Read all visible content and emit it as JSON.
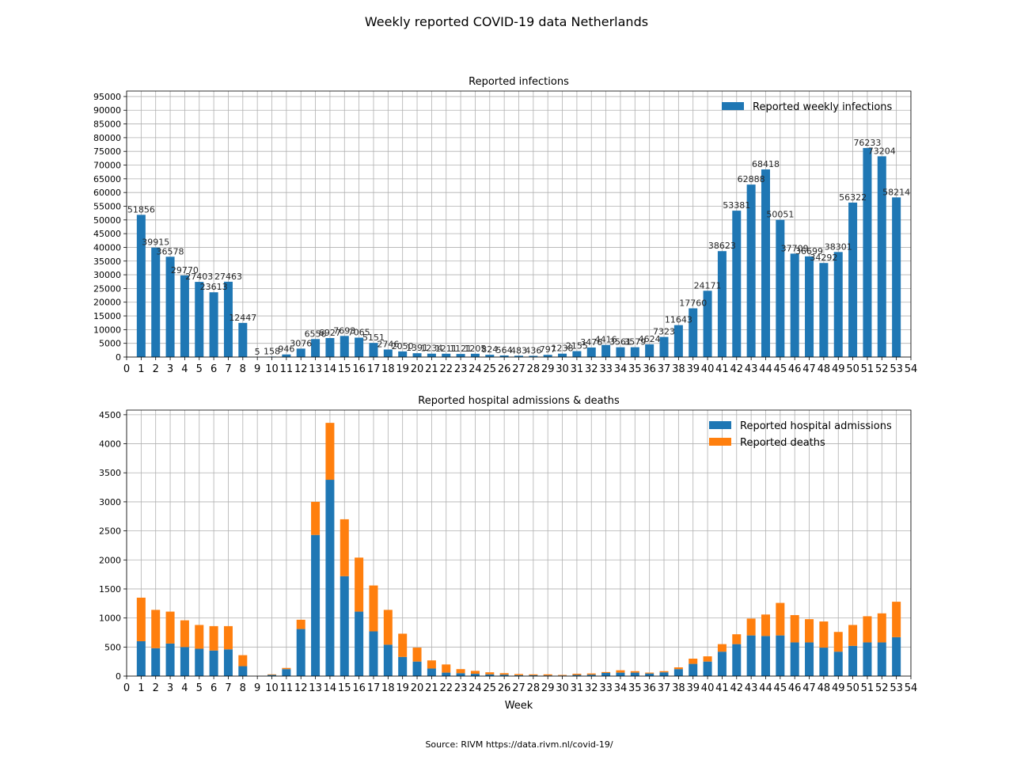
{
  "figure": {
    "suptitle": "Weekly reported COVID-19 data Netherlands",
    "source": "Source: RIVM https://data.rivm.nl/covid-19/"
  },
  "colors": {
    "infections": "#1f77b4",
    "admissions": "#1f77b4",
    "deaths": "#ff7f0e"
  },
  "chart_data": [
    {
      "type": "bar",
      "title": "Reported infections",
      "xlabel": "",
      "ylabel": "",
      "xlim": [
        0,
        54
      ],
      "ylim": [
        0,
        97000
      ],
      "xticks": [
        0,
        1,
        2,
        3,
        4,
        5,
        6,
        7,
        8,
        9,
        10,
        11,
        12,
        13,
        14,
        15,
        16,
        17,
        18,
        19,
        20,
        21,
        22,
        23,
        24,
        25,
        26,
        27,
        28,
        29,
        30,
        31,
        32,
        33,
        34,
        35,
        36,
        37,
        38,
        39,
        40,
        41,
        42,
        43,
        44,
        45,
        46,
        47,
        48,
        49,
        50,
        51,
        52,
        53,
        54
      ],
      "yticks": [
        0,
        5000,
        10000,
        15000,
        20000,
        25000,
        30000,
        35000,
        40000,
        45000,
        50000,
        55000,
        60000,
        65000,
        70000,
        75000,
        80000,
        85000,
        90000,
        95000
      ],
      "grid": true,
      "legend_position": "top-right",
      "series": [
        {
          "name": "Reported weekly infections",
          "x": [
            1,
            2,
            3,
            4,
            5,
            6,
            7,
            8,
            9,
            10,
            11,
            12,
            13,
            14,
            15,
            16,
            17,
            18,
            19,
            20,
            21,
            22,
            23,
            24,
            25,
            26,
            27,
            28,
            29,
            30,
            31,
            32,
            33,
            34,
            35,
            36,
            37,
            38,
            39,
            40,
            41,
            42,
            43,
            44,
            45,
            46,
            47,
            48,
            49,
            50,
            51,
            52,
            53
          ],
          "values": [
            51856,
            39915,
            36578,
            29770,
            27403,
            23613,
            27463,
            12447,
            5,
            158,
            946,
            3076,
            6556,
            6927,
            7693,
            7065,
            5151,
            2746,
            2050,
            1391,
            1234,
            1211,
            1121,
            1205,
            824,
            564,
            483,
            436,
            797,
            1238,
            2155,
            3476,
            4416,
            3561,
            3579,
            4624,
            7323,
            11643,
            17760,
            24171,
            38623,
            53381,
            62888,
            68418,
            50051,
            37709,
            36699,
            34292,
            38301,
            56322,
            76233,
            73204,
            58214
          ],
          "labels": [
            "51856",
            "39915",
            "36578",
            "29770",
            "27403",
            "23613",
            "27463",
            "12447",
            "5",
            "158",
            "946",
            "3076",
            "6556",
            "6927",
            "7693",
            "7065",
            "5151",
            "2746",
            "2050",
            "1391",
            "1234",
            "1211",
            "1121",
            "1205",
            "824",
            "564",
            "483",
            "436",
            "797",
            "1238",
            "2155",
            "3476",
            "4416",
            "3561",
            "3579",
            "4624",
            "7323",
            "11643",
            "17760",
            "24171",
            "38623",
            "53381",
            "62888",
            "68418",
            "50051",
            "37709",
            "36699",
            "34292",
            "38301",
            "56322",
            "76233",
            "73204",
            "58214"
          ]
        }
      ]
    },
    {
      "type": "bar",
      "stacked": true,
      "title": "Reported hospital admissions & deaths",
      "xlabel": "Week",
      "ylabel": "",
      "xlim": [
        0,
        54
      ],
      "ylim": [
        0,
        4580
      ],
      "xticks": [
        0,
        1,
        2,
        3,
        4,
        5,
        6,
        7,
        8,
        9,
        10,
        11,
        12,
        13,
        14,
        15,
        16,
        17,
        18,
        19,
        20,
        21,
        22,
        23,
        24,
        25,
        26,
        27,
        28,
        29,
        30,
        31,
        32,
        33,
        34,
        35,
        36,
        37,
        38,
        39,
        40,
        41,
        42,
        43,
        44,
        45,
        46,
        47,
        48,
        49,
        50,
        51,
        52,
        53,
        54
      ],
      "yticks": [
        0,
        500,
        1000,
        1500,
        2000,
        2500,
        3000,
        3500,
        4000,
        4500
      ],
      "grid": true,
      "legend_position": "top-right",
      "x": [
        1,
        2,
        3,
        4,
        5,
        6,
        7,
        8,
        9,
        10,
        11,
        12,
        13,
        14,
        15,
        16,
        17,
        18,
        19,
        20,
        21,
        22,
        23,
        24,
        25,
        26,
        27,
        28,
        29,
        30,
        31,
        32,
        33,
        34,
        35,
        36,
        37,
        38,
        39,
        40,
        41,
        42,
        43,
        44,
        45,
        46,
        47,
        48,
        49,
        50,
        51,
        52,
        53
      ],
      "series": [
        {
          "name": "Reported hospital admissions",
          "values": [
            600,
            480,
            560,
            500,
            470,
            440,
            460,
            170,
            0,
            20,
            120,
            810,
            2430,
            3380,
            1720,
            1110,
            770,
            540,
            330,
            250,
            130,
            60,
            50,
            40,
            30,
            25,
            15,
            15,
            12,
            10,
            20,
            25,
            55,
            60,
            60,
            45,
            65,
            120,
            210,
            250,
            420,
            550,
            700,
            690,
            700,
            580,
            580,
            490,
            420,
            520,
            580,
            580,
            670
          ]
        },
        {
          "name": "Reported deaths",
          "values": [
            750,
            660,
            550,
            460,
            410,
            420,
            400,
            190,
            0,
            10,
            20,
            160,
            570,
            980,
            980,
            930,
            790,
            600,
            400,
            240,
            140,
            140,
            70,
            50,
            35,
            25,
            20,
            15,
            18,
            10,
            20,
            20,
            15,
            40,
            25,
            15,
            20,
            30,
            90,
            90,
            130,
            170,
            290,
            370,
            560,
            470,
            400,
            450,
            340,
            360,
            450,
            500,
            610
          ]
        }
      ]
    }
  ]
}
